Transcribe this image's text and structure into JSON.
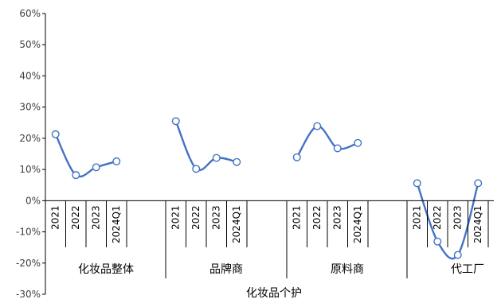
{
  "chart_data": {
    "type": "line",
    "title": "",
    "xlabel": "化妆品个护",
    "ylabel": "",
    "ylim": [
      -0.3,
      0.6
    ],
    "ytick_labels": [
      "60%",
      "50%",
      "40%",
      "30%",
      "20%",
      "10%",
      "0%",
      "-10%",
      "-20%",
      "-30%"
    ],
    "yticks": [
      0.6,
      0.5,
      0.4,
      0.3,
      0.2,
      0.1,
      0.0,
      -0.1,
      -0.2,
      -0.3
    ],
    "grid": false,
    "legend": "none",
    "groups": [
      {
        "name": "化妆品整体",
        "categories": [
          "2021",
          "2022",
          "2023",
          "2024Q1"
        ],
        "values": [
          0.213,
          0.082,
          0.107,
          0.126
        ]
      },
      {
        "name": "品牌商",
        "categories": [
          "2021",
          "2022",
          "2023",
          "2024Q1"
        ],
        "values": [
          0.255,
          0.102,
          0.137,
          0.124
        ]
      },
      {
        "name": "原料商",
        "categories": [
          "2021",
          "2022",
          "2023",
          "2024Q1"
        ],
        "values": [
          0.139,
          0.239,
          0.168,
          0.185
        ]
      },
      {
        "name": "代工厂",
        "categories": [
          "2021",
          "2022",
          "2023",
          "2024Q1"
        ],
        "values": [
          0.056,
          -0.131,
          -0.174,
          0.056
        ]
      }
    ],
    "line_color": "#4472C4",
    "marker_fill": "#ffffff"
  }
}
